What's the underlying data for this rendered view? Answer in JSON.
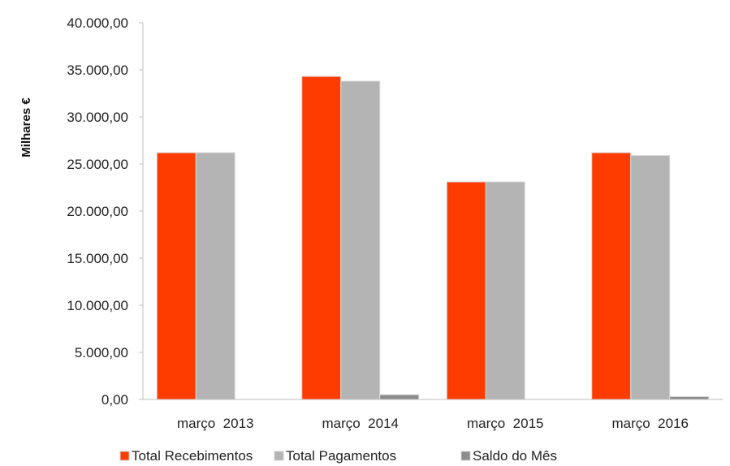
{
  "chart_data": {
    "type": "bar",
    "ylabel": "Milhares €",
    "ylim": [
      0,
      40000
    ],
    "y_ticks": [
      0,
      5000,
      10000,
      15000,
      20000,
      25000,
      30000,
      35000,
      40000
    ],
    "y_tick_labels": [
      "0,00",
      "5.000,00",
      "10.000,00",
      "15.000,00",
      "20.000,00",
      "25.000,00",
      "30.000,00",
      "35.000,00",
      "40.000,00"
    ],
    "categories": [
      "março  2013",
      "março  2014",
      "março  2015",
      "março  2016"
    ],
    "series": [
      {
        "name": "Total Recebimentos",
        "color": "#ff3c00",
        "values": [
          26200,
          34300,
          23100,
          26200
        ]
      },
      {
        "name": "Total Pagamentos",
        "color": "#b4b4b4",
        "values": [
          26200,
          33800,
          23100,
          25900
        ]
      },
      {
        "name": "Saldo do Mês",
        "color": "#8c8c8c",
        "values": [
          0,
          500,
          0,
          300
        ]
      }
    ],
    "legend_position": "bottom",
    "grid": false
  }
}
